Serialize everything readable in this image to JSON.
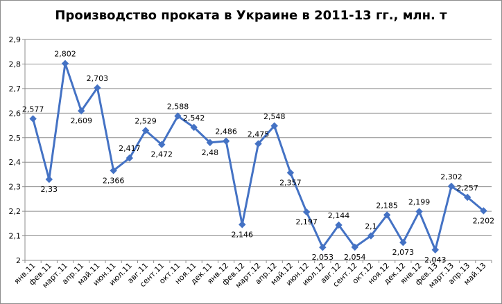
{
  "chart_data": {
    "type": "line",
    "title": "Производство проката в Украине в 2011-13 гг., млн. т",
    "xlabel": "",
    "ylabel": "",
    "ylim": [
      2,
      2.9
    ],
    "yticks": [
      "2",
      "2,1",
      "2,2",
      "2,3",
      "2,4",
      "2,5",
      "2,6",
      "2,7",
      "2,8",
      "2,9"
    ],
    "grid": true,
    "legend": "none",
    "series_color": "#4472C4",
    "categories": [
      "янв.11",
      "фев.11",
      "март.11",
      "апр.11",
      "май.11",
      "июн.11",
      "июл.11",
      "авг.11",
      "сент.11",
      "окт.11",
      "ноя.11",
      "дек.11",
      "янв.12",
      "фев.12",
      "март.12",
      "апр.12",
      "май.12",
      "июн.12",
      "июл.12",
      "авг.12",
      "сент.12",
      "окт.12",
      "ноя.12",
      "дек.12",
      "янв.12",
      "фев.13",
      "март.13",
      "апр.13",
      "май.13"
    ],
    "values": [
      2.577,
      2.33,
      2.802,
      2.609,
      2.703,
      2.366,
      2.417,
      2.529,
      2.472,
      2.588,
      2.542,
      2.48,
      2.486,
      2.146,
      2.475,
      2.548,
      2.357,
      2.197,
      2.053,
      2.144,
      2.054,
      2.1,
      2.185,
      2.073,
      2.199,
      2.043,
      2.302,
      2.257,
      2.202
    ],
    "data_labels": [
      "2,577",
      "2,33",
      "2,802",
      "2,609",
      "2,703",
      "2,366",
      "2,417",
      "2,529",
      "2,472",
      "2,588",
      "2,542",
      "2,48",
      "2,486",
      "2,146",
      "2,475",
      "2,548",
      "2,357",
      "2,197",
      "2,053",
      "2,144",
      "2,054",
      "2,1",
      "2,185",
      "2,073",
      "2,199",
      "2,043",
      "2,302",
      "2,257",
      "2,202"
    ],
    "data_label_positions": [
      "above",
      "below",
      "above",
      "below",
      "above",
      "below",
      "above",
      "above",
      "below",
      "above",
      "above",
      "below",
      "above",
      "below",
      "above",
      "above",
      "below",
      "below",
      "below",
      "above",
      "below",
      "above",
      "above",
      "below",
      "above",
      "below",
      "above",
      "above",
      "below"
    ]
  }
}
